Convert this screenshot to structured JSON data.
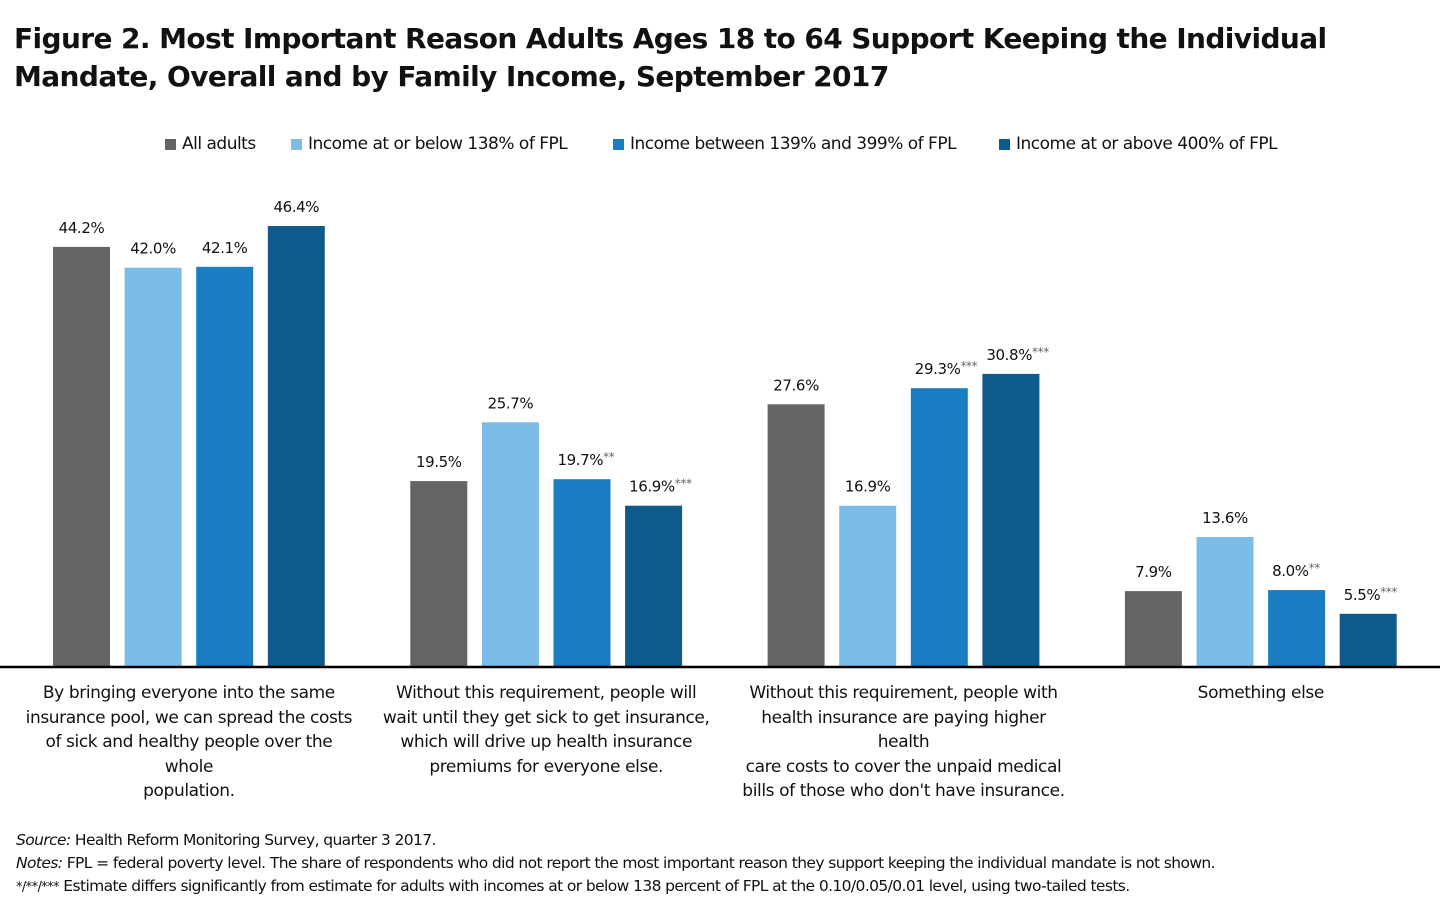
{
  "title": "Figure 2. Most Important Reason Adults Ages 18 to 64 Support Keeping the Individual Mandate, Overall and by Family Income, September 2017",
  "title_lines": [
    "Figure 2. Most Important Reason Adults Ages 18 to 64 Support Keeping the Individual",
    "Mandate, Overall and by Family Income, September 2017"
  ],
  "colors": {
    "all_adults": "#636466",
    "below_138": "#7bbde7",
    "between_139_399": "#1a7dc1",
    "above_400": "#0e5a8a",
    "baseline": "#000000"
  },
  "chart_data": {
    "type": "bar",
    "title": "Figure 2. Most Important Reason Adults Ages 18 to 64 Support Keeping the Individual Mandate, Overall and by Family Income, September 2017",
    "xlabel": "",
    "ylabel": "",
    "ylim": [
      0,
      50
    ],
    "grid": false,
    "legend_position": "top-center",
    "value_unit": "%",
    "categories": [
      "By bringing everyone into the same insurance pool, we can spread the costs of sick and healthy people over the whole population.",
      "Without this requirement, people will wait until they get sick to get insurance, which will drive up health insurance premiums for everyone else.",
      "Without this requirement, people with health insurance are paying higher health care costs to cover the unpaid medical bills of those who don't have insurance.",
      "Something else"
    ],
    "category_lines": [
      [
        "By bringing everyone into the same",
        "insurance pool, we can spread the costs",
        "of sick and healthy people over the whole",
        "population."
      ],
      [
        "Without this requirement, people will",
        "wait until they get sick to get insurance,",
        "which will drive up health insurance",
        "premiums for everyone else."
      ],
      [
        "Without this requirement, people with",
        "health insurance are paying higher health",
        "care costs to cover the unpaid medical",
        "bills of those who don't have insurance."
      ],
      [
        "Something else"
      ]
    ],
    "series": [
      {
        "name": "All adults",
        "color": "#636466",
        "values": [
          44.2,
          19.5,
          27.6,
          7.9
        ],
        "labels": [
          "44.2%",
          "19.5%",
          "27.6%",
          "7.9%"
        ],
        "significance": [
          "",
          "",
          "",
          ""
        ]
      },
      {
        "name": "Income at or below 138% of FPL",
        "color": "#7bbde7",
        "values": [
          42.0,
          25.7,
          16.9,
          13.6
        ],
        "labels": [
          "42.0%",
          "25.7%",
          "16.9%",
          "13.6%"
        ],
        "significance": [
          "",
          "",
          "",
          ""
        ]
      },
      {
        "name": "Income between 139% and 399% of FPL",
        "color": "#1a7dc1",
        "values": [
          42.1,
          19.7,
          29.3,
          8.0
        ],
        "labels": [
          "42.1%",
          "19.7%",
          "29.3%",
          "8.0%"
        ],
        "significance": [
          "",
          "**",
          "***",
          "**"
        ]
      },
      {
        "name": "Income at or above 400% of FPL",
        "color": "#0e5a8a",
        "values": [
          46.4,
          16.9,
          30.8,
          5.5
        ],
        "labels": [
          "46.4%",
          "16.9%",
          "30.8%",
          "5.5%"
        ],
        "significance": [
          "",
          "***",
          "***",
          "***"
        ]
      }
    ]
  },
  "footer": {
    "source_label": "Source:",
    "source_text": " Health Reform Monitoring Survey, quarter 3 2017.",
    "notes_label": "Notes:",
    "notes_text": " FPL = federal poverty level. The share of respondents who did not report the most important reason they support keeping the individual mandate is not shown.",
    "significance_prefix": "*/**/***",
    "significance_text": " Estimate differs significantly from estimate for adults with incomes at or below 138 percent of FPL at the 0.10/0.05/0.01 level, using two-tailed tests."
  }
}
